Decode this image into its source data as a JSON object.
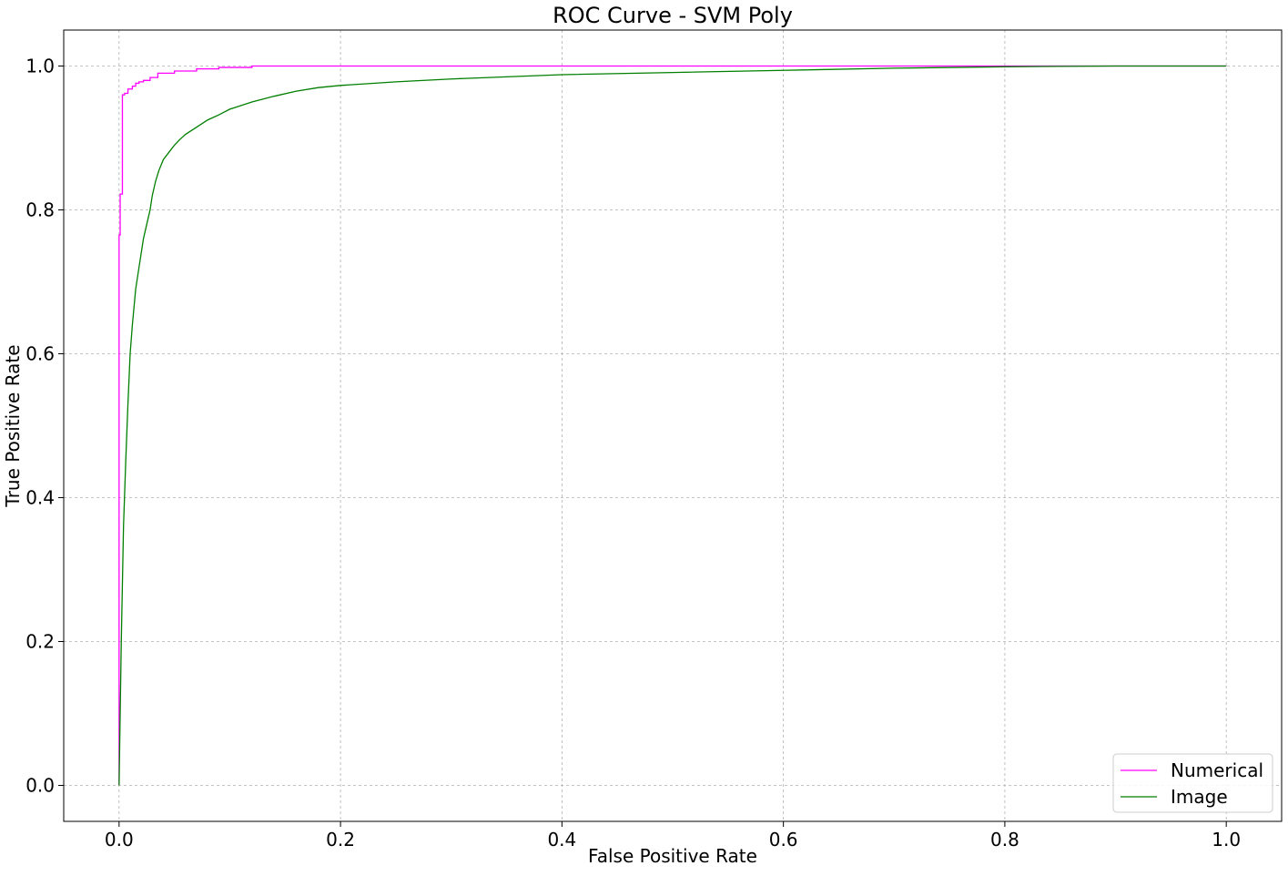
{
  "chart_data": {
    "type": "line",
    "title": "ROC Curve - SVM Poly",
    "xlabel": "False Positive Rate",
    "ylabel": "True Positive Rate",
    "xlim": [
      -0.05,
      1.05
    ],
    "ylim": [
      -0.05,
      1.05
    ],
    "xticks": [
      0.0,
      0.2,
      0.4,
      0.6,
      0.8,
      1.0
    ],
    "yticks": [
      0.0,
      0.2,
      0.4,
      0.6,
      0.8,
      1.0
    ],
    "xtick_labels": [
      "0.0",
      "0.2",
      "0.4",
      "0.6",
      "0.8",
      "1.0"
    ],
    "ytick_labels": [
      "0.0",
      "0.2",
      "0.4",
      "0.6",
      "0.8",
      "1.0"
    ],
    "grid": true,
    "legend_position": "lower-right",
    "series": [
      {
        "name": "Numerical",
        "color": "#ff00ff",
        "x": [
          0.0,
          0.0,
          0.001,
          0.001,
          0.003,
          0.003,
          0.005,
          0.005,
          0.008,
          0.008,
          0.012,
          0.012,
          0.015,
          0.015,
          0.018,
          0.018,
          0.022,
          0.022,
          0.028,
          0.028,
          0.035,
          0.035,
          0.05,
          0.05,
          0.07,
          0.07,
          0.09,
          0.09,
          0.12,
          0.12,
          1.0
        ],
        "y": [
          0.0,
          0.765,
          0.765,
          0.822,
          0.822,
          0.96,
          0.96,
          0.962,
          0.962,
          0.968,
          0.968,
          0.972,
          0.972,
          0.976,
          0.976,
          0.978,
          0.978,
          0.98,
          0.98,
          0.984,
          0.984,
          0.99,
          0.99,
          0.993,
          0.993,
          0.996,
          0.996,
          0.998,
          0.998,
          1.0,
          1.0
        ]
      },
      {
        "name": "Image",
        "color": "#007f00",
        "x": [
          0.0,
          0.001,
          0.002,
          0.003,
          0.004,
          0.006,
          0.008,
          0.01,
          0.012,
          0.015,
          0.018,
          0.02,
          0.022,
          0.025,
          0.028,
          0.03,
          0.033,
          0.036,
          0.04,
          0.045,
          0.05,
          0.055,
          0.06,
          0.07,
          0.08,
          0.09,
          0.1,
          0.12,
          0.14,
          0.16,
          0.18,
          0.2,
          0.25,
          0.3,
          0.35,
          0.4,
          0.5,
          0.6,
          0.7,
          0.8,
          0.9,
          1.0
        ],
        "y": [
          0.0,
          0.1,
          0.2,
          0.28,
          0.36,
          0.45,
          0.53,
          0.6,
          0.64,
          0.69,
          0.72,
          0.74,
          0.76,
          0.78,
          0.8,
          0.82,
          0.84,
          0.855,
          0.87,
          0.88,
          0.89,
          0.898,
          0.905,
          0.915,
          0.925,
          0.932,
          0.94,
          0.95,
          0.958,
          0.965,
          0.97,
          0.973,
          0.978,
          0.982,
          0.985,
          0.988,
          0.991,
          0.994,
          0.997,
          0.999,
          1.0,
          1.0
        ]
      }
    ]
  }
}
